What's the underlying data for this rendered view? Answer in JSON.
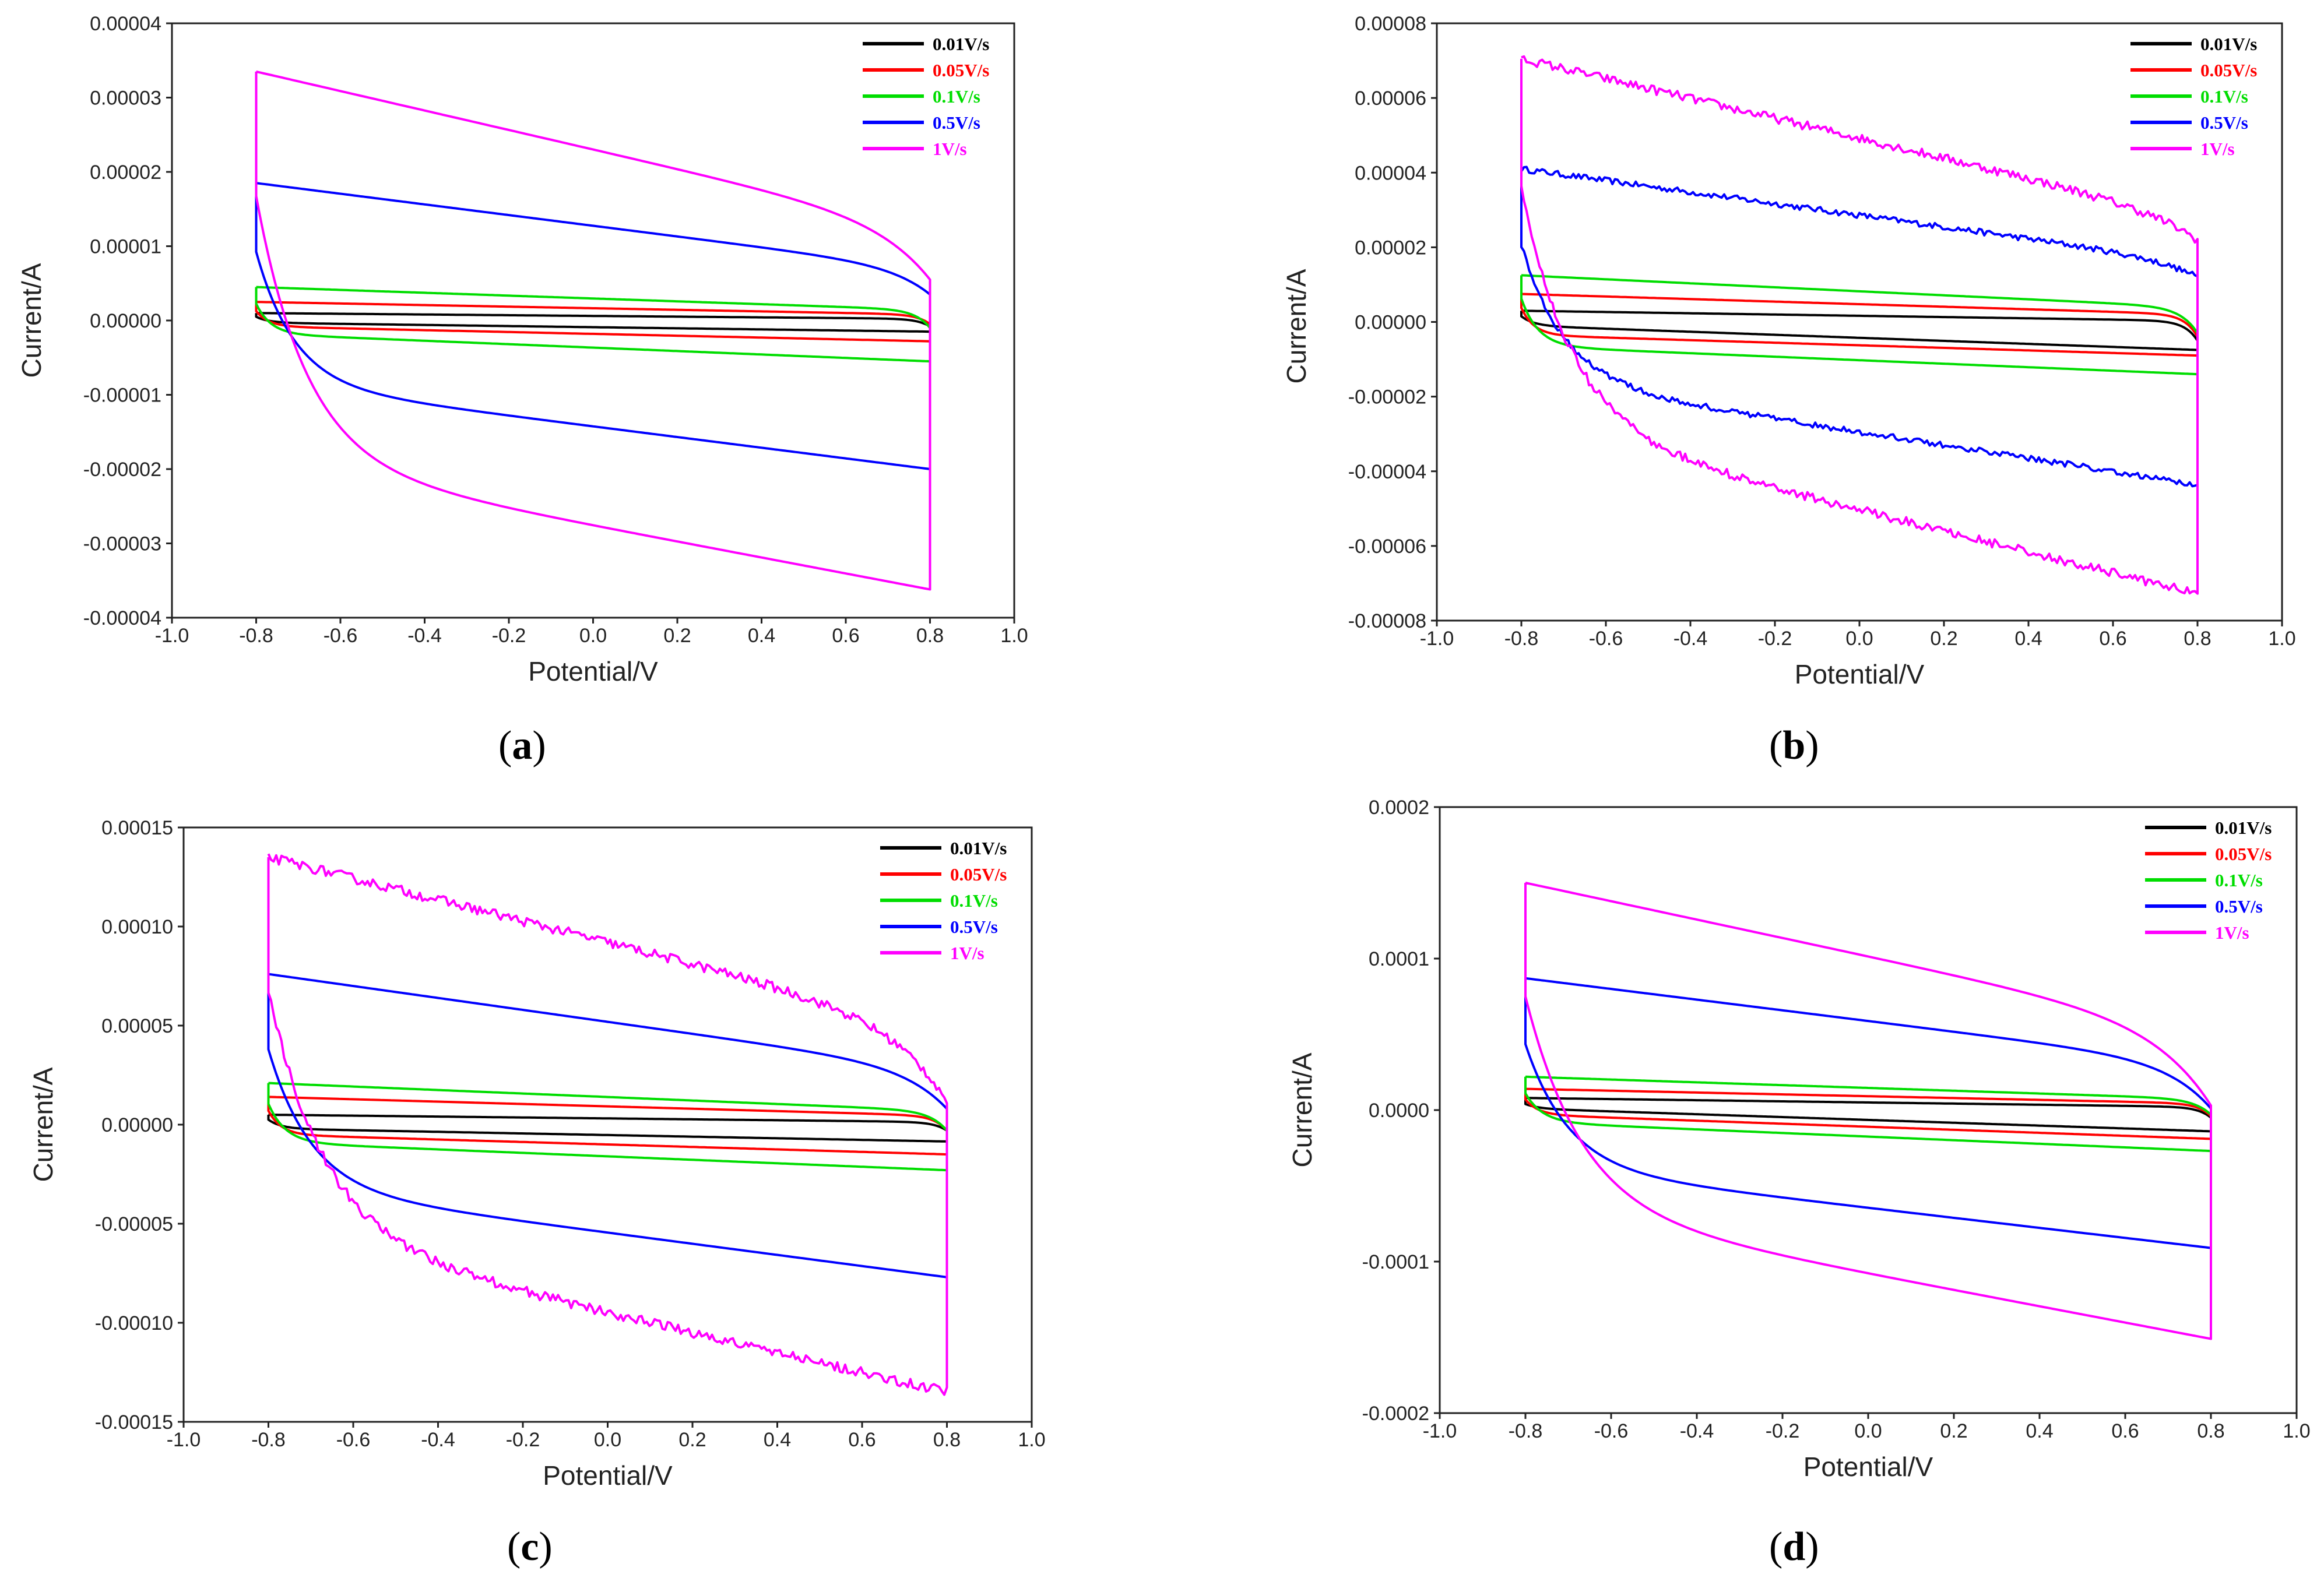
{
  "figure": {
    "panels": [
      {
        "id": "a",
        "caption_open": "(",
        "caption_letter": "a",
        "caption_close": ")",
        "chart_data": {
          "type": "line",
          "title": "",
          "xlabel": "Potential/V",
          "ylabel": "Current/A",
          "xlim": [
            -1.0,
            1.0
          ],
          "ylim": [
            -4e-05,
            4e-05
          ],
          "xticks": [
            "-1.0",
            "-0.8",
            "-0.6",
            "-0.4",
            "-0.2",
            "0.0",
            "0.2",
            "0.4",
            "0.6",
            "0.8",
            "1.0"
          ],
          "yticks": [
            "-0.00004",
            "-0.00003",
            "-0.00002",
            "-0.00001",
            "0.00000",
            "0.00001",
            "0.00002",
            "0.00003",
            "0.00004"
          ],
          "legend_position": "top-right",
          "series": [
            {
              "name": "0.01V/s",
              "color": "#000000",
              "upper_start": 1e-06,
              "upper_end": -8e-07,
              "lower_start": -3e-07,
              "lower_end": -1.5e-06,
              "tau": 0.03,
              "noise": 0
            },
            {
              "name": "0.05V/s",
              "color": "#ff0000",
              "upper_start": 2.5e-06,
              "upper_end": -5e-07,
              "lower_start": -8e-07,
              "lower_end": -2.8e-06,
              "tau": 0.03,
              "noise": 0
            },
            {
              "name": "0.1V/s",
              "color": "#00dd00",
              "upper_start": 4.5e-06,
              "upper_end": -1e-06,
              "lower_start": -1.8e-06,
              "lower_end": -5.5e-06,
              "tau": 0.035,
              "noise": 0
            },
            {
              "name": "0.5V/s",
              "color": "#0000ff",
              "upper_start": 1.85e-05,
              "upper_end": 3.5e-06,
              "lower_start": -8.5e-06,
              "lower_end": -2e-05,
              "tau": 0.09,
              "noise": 0
            },
            {
              "name": "1V/s",
              "color": "#ff00ff",
              "upper_start": 3.35e-05,
              "upper_end": 5.5e-06,
              "lower_start": -1.9e-05,
              "lower_end": -3.62e-05,
              "tau": 0.12,
              "noise": 0
            }
          ]
        }
      },
      {
        "id": "b",
        "caption_open": "(",
        "caption_letter": "b",
        "caption_close": ")",
        "chart_data": {
          "type": "line",
          "title": "",
          "xlabel": "Potential/V",
          "ylabel": "Current/A",
          "xlim": [
            -1.0,
            1.0
          ],
          "ylim": [
            -8e-05,
            8e-05
          ],
          "xticks": [
            "-1.0",
            "-0.8",
            "-0.6",
            "-0.4",
            "-0.2",
            "0.0",
            "0.2",
            "0.4",
            "0.6",
            "0.8",
            "1.0"
          ],
          "yticks": [
            "-0.00008",
            "-0.00006",
            "-0.00004",
            "-0.00002",
            "0.00000",
            "0.00002",
            "0.00004",
            "0.00006",
            "0.00008"
          ],
          "legend_position": "top-right",
          "series": [
            {
              "name": "0.01V/s",
              "color": "#000000",
              "upper_start": 3e-06,
              "upper_end": -5e-06,
              "lower_start": -1e-06,
              "lower_end": -7.5e-06,
              "tau": 0.03,
              "noise": 0
            },
            {
              "name": "0.05V/s",
              "color": "#ff0000",
              "upper_start": 7.5e-06,
              "upper_end": -4e-06,
              "lower_start": -3.5e-06,
              "lower_end": -9e-06,
              "tau": 0.03,
              "noise": 0
            },
            {
              "name": "0.1V/s",
              "color": "#00dd00",
              "upper_start": 1.25e-05,
              "upper_end": -3e-06,
              "lower_start": -6.5e-06,
              "lower_end": -1.4e-05,
              "tau": 0.04,
              "noise": 0
            },
            {
              "name": "0.5V/s",
              "color": "#0000ff",
              "upper_start": 4.1e-05,
              "upper_end": 1.2e-05,
              "lower_start": -1.55e-05,
              "lower_end": -4.35e-05,
              "tau": 0.1,
              "noise": 8e-07
            },
            {
              "name": "1V/s",
              "color": "#ff00ff",
              "upper_start": 7.05e-05,
              "upper_end": 2.2e-05,
              "lower_start": -2.8e-05,
              "lower_end": -7.28e-05,
              "tau": 0.12,
              "noise": 1.2e-06
            }
          ]
        }
      },
      {
        "id": "c",
        "caption_open": "(",
        "caption_letter": "c",
        "caption_close": ")",
        "chart_data": {
          "type": "line",
          "title": "",
          "xlabel": "Potential/V",
          "ylabel": "Current/A",
          "xlim": [
            -1.0,
            1.0
          ],
          "ylim": [
            -0.00015,
            0.00015
          ],
          "xticks": [
            "-1.0",
            "-0.8",
            "-0.6",
            "-0.4",
            "-0.2",
            "0.0",
            "0.2",
            "0.4",
            "0.6",
            "0.8",
            "1.0"
          ],
          "yticks": [
            "-0.00015",
            "-0.00010",
            "-0.00005",
            "0.00000",
            "0.00005",
            "0.00010",
            "0.00015"
          ],
          "legend_position": "top-right",
          "series": [
            {
              "name": "0.01V/s",
              "color": "#000000",
              "upper_start": 5e-06,
              "upper_end": -3e-06,
              "lower_start": -2e-06,
              "lower_end": -8.5e-06,
              "tau": 0.03,
              "noise": 0
            },
            {
              "name": "0.05V/s",
              "color": "#ff0000",
              "upper_start": 1.4e-05,
              "upper_end": -3e-06,
              "lower_start": -5e-06,
              "lower_end": -1.5e-05,
              "tau": 0.03,
              "noise": 0
            },
            {
              "name": "0.1V/s",
              "color": "#00dd00",
              "upper_start": 2.1e-05,
              "upper_end": -3e-06,
              "lower_start": -9e-06,
              "lower_end": -2.3e-05,
              "tau": 0.04,
              "noise": 0
            },
            {
              "name": "0.5V/s",
              "color": "#0000ff",
              "upper_start": 7.6e-05,
              "upper_end": 8e-06,
              "lower_start": -3.2e-05,
              "lower_end": -7.7e-05,
              "tau": 0.1,
              "noise": 0
            },
            {
              "name": "1V/s",
              "color": "#ff00ff",
              "upper_start": 0.000135,
              "upper_end": 1.2e-05,
              "lower_start": -5.5e-05,
              "lower_end": -0.000135,
              "tau": 0.13,
              "noise": 2.5e-06
            }
          ]
        }
      },
      {
        "id": "d",
        "caption_open": "(",
        "caption_letter": "d",
        "caption_close": ")",
        "chart_data": {
          "type": "line",
          "title": "",
          "xlabel": "Potential/V",
          "ylabel": "Current/A",
          "xlim": [
            -1.0,
            1.0
          ],
          "ylim": [
            -0.0002,
            0.0002
          ],
          "xticks": [
            "-1.0",
            "-0.8",
            "-0.6",
            "-0.4",
            "-0.2",
            "0.0",
            "0.2",
            "0.4",
            "0.6",
            "0.8",
            "1.0"
          ],
          "yticks": [
            "-0.0002",
            "-0.0001",
            "0.0000",
            "0.0001",
            "0.0002"
          ],
          "legend_position": "top-right",
          "series": [
            {
              "name": "0.01V/s",
              "color": "#000000",
              "upper_start": 8e-06,
              "upper_end": -5e-06,
              "lower_start": 1e-06,
              "lower_end": -1.4e-05,
              "tau": 0.03,
              "noise": 0
            },
            {
              "name": "0.05V/s",
              "color": "#ff0000",
              "upper_start": 1.4e-05,
              "upper_end": -4e-06,
              "lower_start": -3e-06,
              "lower_end": -1.9e-05,
              "tau": 0.03,
              "noise": 0
            },
            {
              "name": "0.1V/s",
              "color": "#00dd00",
              "upper_start": 2.2e-05,
              "upper_end": -3e-06,
              "lower_start": -8e-06,
              "lower_end": -2.7e-05,
              "tau": 0.04,
              "noise": 0
            },
            {
              "name": "0.5V/s",
              "color": "#0000ff",
              "upper_start": 8.7e-05,
              "upper_end": 1e-06,
              "lower_start": -3.8e-05,
              "lower_end": -9.1e-05,
              "tau": 0.1,
              "noise": 0
            },
            {
              "name": "1V/s",
              "color": "#ff00ff",
              "upper_start": 0.00015,
              "upper_end": 3e-06,
              "lower_start": -6.5e-05,
              "lower_end": -0.000151,
              "tau": 0.13,
              "noise": 0
            }
          ]
        }
      }
    ]
  }
}
